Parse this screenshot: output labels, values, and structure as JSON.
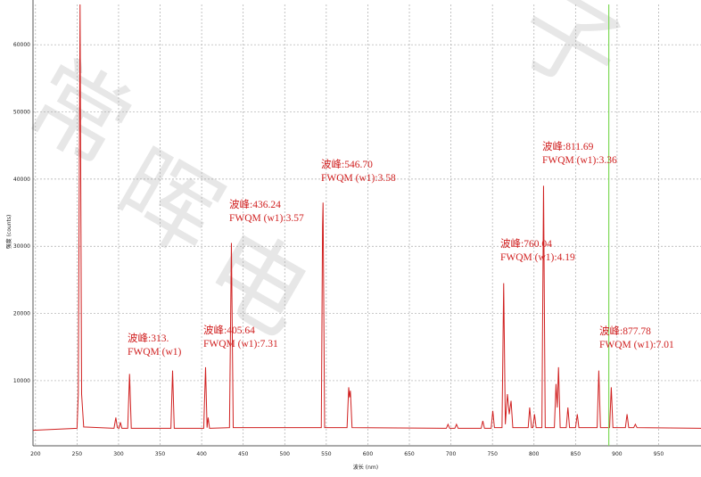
{
  "chart_data": {
    "type": "line",
    "x_label": "波长 (nm)",
    "y_label": "强度 (counts)",
    "watermark": [
      "常",
      "晖",
      "电",
      "子"
    ],
    "x": [
      197,
      250,
      251.5,
      253.65,
      255.5,
      258,
      294.5,
      296.7,
      298.5,
      300.5,
      302.2,
      304,
      311,
      313.2,
      315.3,
      363,
      365,
      367,
      402.5,
      404.7,
      406.5,
      407.8,
      409.5,
      433.5,
      435.8,
      438,
      544,
      545.5,
      546.1,
      548,
      575,
      577,
      578,
      579,
      581,
      694.5,
      696.5,
      698.5,
      704.7,
      706.7,
      708.7,
      736.4,
      738.4,
      740.4,
      748.4,
      750.4,
      752.4,
      761.5,
      763.5,
      765.5,
      768,
      770.2,
      772.4,
      774.5,
      793,
      794.8,
      797,
      798.6,
      800.6,
      802.6,
      809.5,
      811.5,
      813.5,
      824.5,
      826.5,
      828,
      829.5,
      831.5,
      838.8,
      840.8,
      842.8,
      850,
      852.1,
      854,
      876,
      878,
      880,
      891,
      893,
      895,
      910,
      912,
      914,
      920,
      922,
      924,
      1001
    ],
    "values": [
      2600,
      2900,
      8000,
      66000,
      8000,
      3100,
      2900,
      4500,
      3000,
      2900,
      3800,
      2900,
      2900,
      11000,
      2900,
      2900,
      11500,
      2900,
      2900,
      12000,
      3000,
      4500,
      2900,
      3000,
      30500,
      3000,
      3000,
      33000,
      36500,
      3000,
      3000,
      9000,
      7500,
      8500,
      3000,
      2900,
      3500,
      2900,
      2900,
      3500,
      2900,
      2900,
      4000,
      2900,
      2900,
      5500,
      3000,
      3000,
      24500,
      3500,
      8000,
      5000,
      7000,
      3000,
      3000,
      6000,
      3000,
      3000,
      5000,
      3000,
      3000,
      39000,
      3000,
      3000,
      9500,
      6000,
      12000,
      3000,
      3000,
      6000,
      3000,
      3000,
      5000,
      3000,
      3000,
      11500,
      3000,
      3000,
      9000,
      3000,
      3000,
      5000,
      3000,
      3000,
      3500,
      3000,
      2900
    ],
    "color": "#d02020",
    "xlim": [
      197,
      1001
    ],
    "ylim": [
      300,
      66000
    ],
    "xticks": [
      200,
      250,
      300,
      350,
      400,
      450,
      500,
      550,
      600,
      650,
      700,
      750,
      800,
      850,
      900,
      950
    ],
    "yticks": [
      10000,
      20000,
      30000,
      40000,
      50000,
      60000
    ],
    "grid": true,
    "marker_line": {
      "x": 890,
      "color": "#7ed957"
    },
    "annotations": [
      [
        "波峰:313.",
        "FWQM (w1)"
      ],
      [
        "波峰:405.64",
        "FWQM (w1):7.31"
      ],
      [
        "波峰:436.24",
        "FWQM (w1):3.57"
      ],
      [
        "波峰:546.70",
        "FWQM (w1):3.58"
      ],
      [
        "波峰:760.04",
        "FWQM (w1):4.19"
      ],
      [
        "波峰:811.69",
        "FWQM (w1):3.36"
      ],
      [
        "波峰:877.78",
        "FWQM (w1):7.01"
      ]
    ]
  }
}
